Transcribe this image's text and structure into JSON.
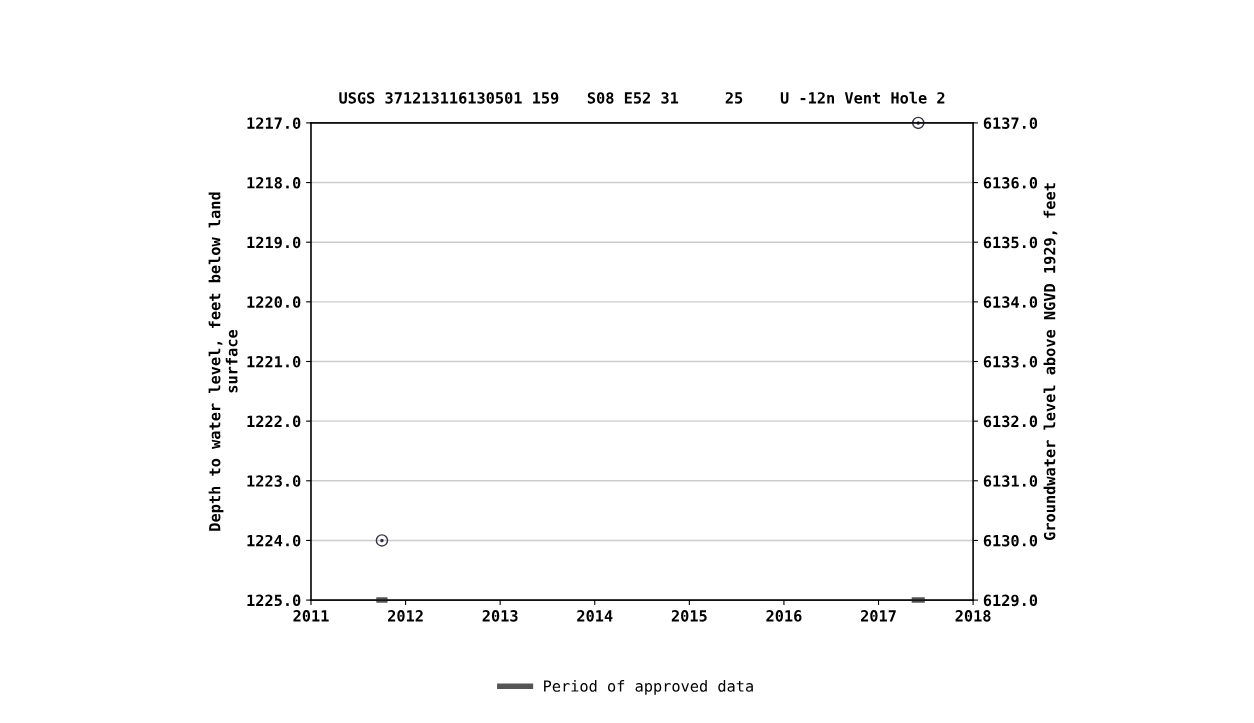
{
  "chart_data": {
    "type": "scatter",
    "title": "USGS 371213116130501 159   S08 E52 31     25    U -12n Vent Hole 2",
    "xlim": [
      2011,
      2018
    ],
    "xticks": [
      2011,
      2012,
      2013,
      2014,
      2015,
      2016,
      2017,
      2018
    ],
    "ylim": [
      1225,
      1217
    ],
    "yticks": [
      {
        "value": 1217,
        "label": "1217.0"
      },
      {
        "value": 1218,
        "label": "1218.0"
      },
      {
        "value": 1219,
        "label": "1219.0"
      },
      {
        "value": 1220,
        "label": "1220.0"
      },
      {
        "value": 1221,
        "label": "1221.0"
      },
      {
        "value": 1222,
        "label": "1222.0"
      },
      {
        "value": 1223,
        "label": "1223.0"
      },
      {
        "value": 1224,
        "label": "1224.0"
      },
      {
        "value": 1225,
        "label": "1225.0"
      }
    ],
    "y2lim": [
      6129,
      6137
    ],
    "y2ticks": [
      {
        "value": 6129,
        "label": "6129.0"
      },
      {
        "value": 6130,
        "label": "6130.0"
      },
      {
        "value": 6131,
        "label": "6131.0"
      },
      {
        "value": 6132,
        "label": "6132.0"
      },
      {
        "value": 6133,
        "label": "6133.0"
      },
      {
        "value": 6134,
        "label": "6134.0"
      },
      {
        "value": 6135,
        "label": "6135.0"
      },
      {
        "value": 6136,
        "label": "6136.0"
      },
      {
        "value": 6137,
        "label": "6137.0"
      }
    ],
    "ylabel": "Depth to water level, feet below land\nsurface",
    "y2label": "Groundwater level above NGVD 1929, feet",
    "grid": "y",
    "legend": "bottom",
    "series": [
      {
        "color": "#333344",
        "marker": "circle",
        "x": [
          2011.75,
          2017.42
        ],
        "values": [
          1224,
          1217
        ]
      },
      {
        "type": "line",
        "name": "Period of approved data",
        "color": "#555555",
        "x": [
          2011.72,
          2011.78,
          2014.5,
          2017.38,
          2017.46
        ],
        "values": [
          1225,
          1225,
          null,
          1225,
          1225
        ]
      }
    ]
  }
}
